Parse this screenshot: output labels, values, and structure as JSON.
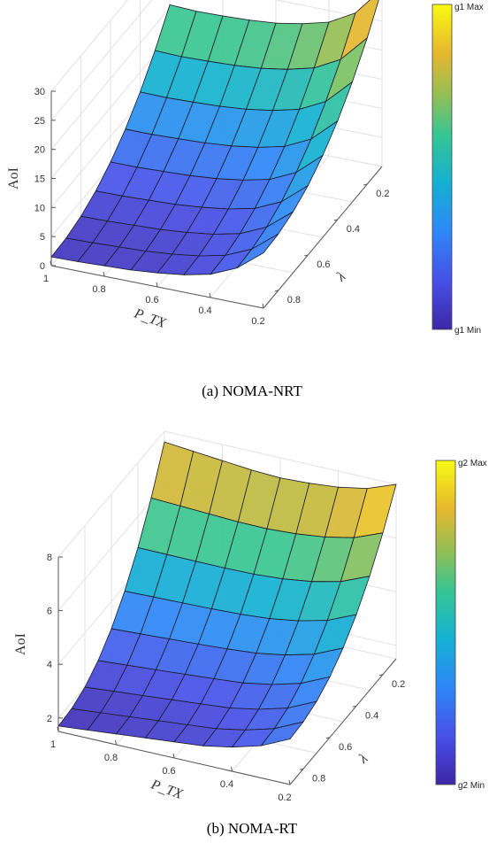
{
  "chart_data": [
    {
      "type": "surface",
      "caption": "(a) NOMA-NRT",
      "zlabel": "AoI",
      "xlabel": "P_TX",
      "ylabel": "λ",
      "xticks": [
        "1",
        "0.8",
        "0.6",
        "0.4",
        "0.2"
      ],
      "yticks": [
        "0.2",
        "0.4",
        "0.6",
        "0.8"
      ],
      "zticks": [
        "0",
        "5",
        "10",
        "15",
        "20",
        "25",
        "30"
      ],
      "xlim": [
        0.2,
        1
      ],
      "ylim": [
        0.1,
        0.9
      ],
      "zlim": [
        0,
        30
      ],
      "colorbar": {
        "max_label": "g1 Max",
        "min_label": "g1 Min"
      },
      "p_values": [
        1.0,
        0.9,
        0.8,
        0.7,
        0.6,
        0.5,
        0.4,
        0.3,
        0.2
      ],
      "lambda_values": [
        0.9,
        0.8,
        0.7,
        0.6,
        0.5,
        0.4,
        0.3,
        0.2,
        0.1
      ],
      "z_near_lambda_edge": [
        1.5,
        1.6,
        1.8,
        2.0,
        2.4,
        3.0,
        4.0,
        6.0,
        9.5
      ],
      "z_far_lambda_edge": [
        20.5,
        20.3,
        20.4,
        20.6,
        21.0,
        21.8,
        23.0,
        25.5,
        30.5
      ],
      "grid": true
    },
    {
      "type": "surface",
      "caption": "(b) NOMA-RT",
      "zlabel": "AoI",
      "xlabel": "P_TX",
      "ylabel": "λ",
      "xticks": [
        "1",
        "0.8",
        "0.6",
        "0.4",
        "0.2"
      ],
      "yticks": [
        "0.2",
        "0.4",
        "0.6",
        "0.8"
      ],
      "zticks": [
        "2",
        "4",
        "6",
        "8"
      ],
      "xlim": [
        0.2,
        1
      ],
      "ylim": [
        0.1,
        0.9
      ],
      "zlim": [
        1.5,
        8
      ],
      "colorbar": {
        "max_label": "g2 Max",
        "min_label": "g2 Min"
      },
      "p_values": [
        1.0,
        0.9,
        0.8,
        0.7,
        0.6,
        0.5,
        0.4,
        0.3,
        0.2
      ],
      "lambda_values": [
        0.9,
        0.8,
        0.7,
        0.6,
        0.5,
        0.4,
        0.3,
        0.2,
        0.1
      ],
      "z_near_lambda_edge": [
        1.7,
        1.8,
        1.9,
        2.0,
        2.1,
        2.2,
        2.4,
        2.7,
        3.2
      ],
      "z_far_lambda_edge": [
        7.6,
        7.5,
        7.4,
        7.3,
        7.25,
        7.3,
        7.4,
        7.6,
        8.0
      ],
      "grid": true
    }
  ]
}
